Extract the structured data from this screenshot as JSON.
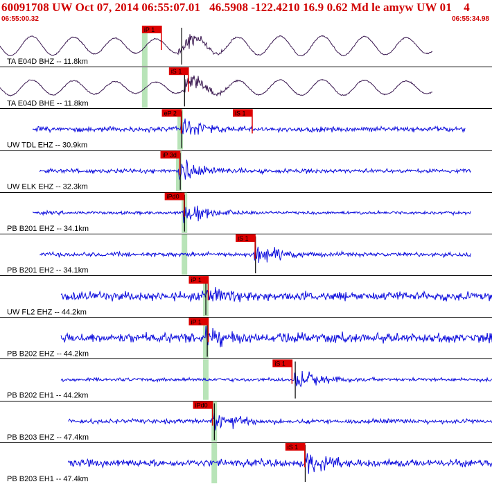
{
  "header": {
    "title": "60091708 UW Oct 07, 2014 06:55:07.01   46.5908 -122.4210 16.9 0.62 Md le amyw UW 01    4",
    "start_time": "06:55:00.32",
    "end_time": "06:55:34.98"
  },
  "colors": {
    "trace_raw": "#3a1850",
    "trace_filtered": "#0a0adc",
    "pick": "#dd0000",
    "window_band": "#b8e4b8",
    "grid": "#000000",
    "header_text": "#d00000"
  },
  "chart_data": {
    "type": "line",
    "title": "60091708 UW Oct 07, 2014 06:55:07.01   46.5908 -122.4210 16.9 0.62 Md le amyw UW 01    4",
    "x_range": [
      "06:55:00.32",
      "06:55:34.98"
    ],
    "x_seconds": [
      0,
      34.66
    ],
    "y_unit": "counts (relative)",
    "grid": true,
    "series": [
      {
        "name": "TA E04D BHZ -- 11.8km",
        "color": "#3a1850",
        "trace_start_s": 0.0,
        "trace_end_s": 30.5,
        "amplitude": 0.5,
        "kind": "raw_swell",
        "band_start_s": 10.0,
        "onset_s": 12.8,
        "picks": [
          {
            "label": "iP 1",
            "time_s": 10.1
          }
        ]
      },
      {
        "name": "TA E04D BHE -- 11.8km",
        "color": "#3a1850",
        "trace_start_s": 0.0,
        "trace_end_s": 30.5,
        "amplitude": 0.4,
        "kind": "raw_swell",
        "band_start_s": 10.0,
        "onset_s": 13.0,
        "picks": [
          {
            "label": "iS 1",
            "time_s": 12.0
          }
        ]
      },
      {
        "name": "UW TDL EHZ -- 30.9km",
        "color": "#0a0adc",
        "trace_start_s": 2.3,
        "trace_end_s": 32.8,
        "amplitude": 0.35,
        "kind": "filtered",
        "band_start_s": 12.5,
        "onset_s": 12.8,
        "picks": [
          {
            "label": "eP 2",
            "time_s": 11.5
          },
          {
            "label": "iS 1",
            "time_s": 16.5
          }
        ]
      },
      {
        "name": "UW ELK EHZ -- 32.3km",
        "color": "#0a0adc",
        "trace_start_s": 2.8,
        "trace_end_s": 33.2,
        "amplitude": 0.3,
        "kind": "filtered",
        "band_start_s": 12.4,
        "onset_s": 12.7,
        "picks": [
          {
            "label": "iP 3d",
            "time_s": 11.4
          }
        ]
      },
      {
        "name": "PB B201 EHZ -- 34.1km",
        "color": "#0a0adc",
        "trace_start_s": 2.3,
        "trace_end_s": 33.2,
        "amplitude": 0.22,
        "kind": "filtered",
        "band_start_s": 12.8,
        "onset_s": 13.0,
        "picks": [
          {
            "label": "iPd0",
            "time_s": 11.7
          }
        ]
      },
      {
        "name": "PB B201 EH2 -- 34.1km",
        "color": "#0a0adc",
        "trace_start_s": 2.8,
        "trace_end_s": 33.2,
        "amplitude": 0.3,
        "kind": "filtered",
        "band_start_s": 12.8,
        "onset_s": 18.0,
        "picks": [
          {
            "label": "iS 1",
            "time_s": 16.7
          }
        ]
      },
      {
        "name": "UW FL2 EHZ -- 44.2km",
        "color": "#0a0adc",
        "trace_start_s": 4.3,
        "trace_end_s": 35.0,
        "amplitude": 0.6,
        "kind": "filtered",
        "band_start_s": 14.3,
        "onset_s": 14.5,
        "picks": [
          {
            "label": "iP 1",
            "time_s": 13.4
          }
        ]
      },
      {
        "name": "PB B202 EHZ -- 44.2km",
        "color": "#0a0adc",
        "trace_start_s": 4.3,
        "trace_end_s": 35.0,
        "amplitude": 0.65,
        "kind": "filtered",
        "band_start_s": 14.3,
        "onset_s": 14.6,
        "picks": [
          {
            "label": "iP 1",
            "time_s": 13.4
          }
        ]
      },
      {
        "name": "PB B202 EH1 -- 44.2km",
        "color": "#0a0adc",
        "trace_start_s": 4.3,
        "trace_end_s": 35.0,
        "amplitude": 0.25,
        "kind": "filtered",
        "band_start_s": 14.3,
        "onset_s": 20.8,
        "picks": [
          {
            "label": "iS 1",
            "time_s": 19.3
          }
        ]
      },
      {
        "name": "PB B203 EHZ -- 47.4km",
        "color": "#0a0adc",
        "trace_start_s": 4.8,
        "trace_end_s": 35.0,
        "amplitude": 0.3,
        "kind": "filtered",
        "band_start_s": 14.9,
        "onset_s": 15.1,
        "picks": [
          {
            "label": "iPd0",
            "time_s": 13.7
          }
        ]
      },
      {
        "name": "PB B203 EH1 -- 47.4km",
        "color": "#0a0adc",
        "trace_start_s": 4.8,
        "trace_end_s": 35.0,
        "amplitude": 0.5,
        "kind": "filtered",
        "band_start_s": 14.9,
        "onset_s": 21.5,
        "picks": [
          {
            "label": "iS 1",
            "time_s": 20.2
          }
        ]
      }
    ]
  }
}
